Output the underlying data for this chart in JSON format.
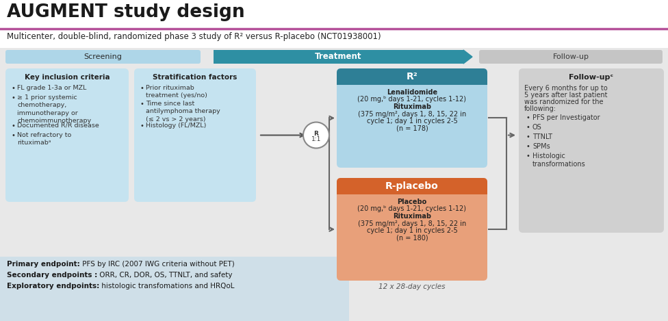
{
  "title": "AUGMENT study design",
  "subtitle": "Multicenter, double-blind, randomized phase 3 study of R² versus R-placebo (NCT01938001)",
  "title_line_color": "#b5519a",
  "bg_color": "#e8e8e8",
  "white": "#ffffff",
  "screening_header_color": "#aed6e8",
  "treatment_header_color": "#2e8fa3",
  "followup_header_color": "#c5c5c5",
  "screening_box_color": "#c5e3f0",
  "r2_header_color": "#2e7f96",
  "r2_box_color": "#aed6e8",
  "rplacebo_header_color": "#d4622a",
  "rplacebo_box_color": "#e8a07a",
  "followup_box_color": "#d0d0d0",
  "endpoint_box_color": "#cfdfe8",
  "key_inclusion_title": "Key inclusion criteria",
  "key_inclusion_bullets": [
    "FL grade 1-3a or MZL",
    "≥ 1 prior systemic\nchemotherapy,\nimmunotherapy or\nchemoimmunotherapy",
    "Documented R/R disease",
    "Not refractory to\nrituximabᵃ"
  ],
  "stratification_title": "Stratification factors",
  "stratification_bullets": [
    "Prior rituximab\ntreatment (yes/no)",
    "Time since last\nantilymphoma therapy\n(≤ 2 vs > 2 years)",
    "Histology (FL/MZL)"
  ],
  "r2_header": "R²",
  "r2_lines": [
    "Lenalidomide",
    "(20 mg,ᵇ days 1-21, cycles 1-12)",
    "Rituximab",
    "(375 mg/m², days 1, 8, 15, 22 in",
    "cycle 1; day 1 in cycles 2-5",
    "(n = 178)"
  ],
  "r2_bold": [
    true,
    false,
    true,
    false,
    false,
    false
  ],
  "rplacebo_header": "R-placebo",
  "rplacebo_lines": [
    "Placebo",
    "(20 mg,ᵇ days 1-21, cycles 1-12)",
    "Rituximab",
    "(375 mg/m², days 1, 8, 15, 22 in",
    "cycle 1; day 1 in cycles 2-5",
    "(n = 180)"
  ],
  "rplacebo_bold": [
    true,
    false,
    true,
    false,
    false,
    false
  ],
  "cycles_label": "12 x 28-day cycles",
  "followup_title": "Follow-upᶜ",
  "followup_content_lines": [
    "Every 6 months for up to",
    "5 years after last patient",
    "was randomized for the",
    "following:"
  ],
  "followup_bullets": [
    "PFS per Investigator",
    "OS",
    "TTNLT",
    "SPMs",
    "Histologic\ntransformations"
  ],
  "primary_bold": "Primary endpoint:",
  "primary_rest": " PFS by IRC (2007 IWG criteria without PET)",
  "secondary_bold": "Secondary endpoints :",
  "secondary_rest": " ORR, CR, DOR, OS, TTNLT, and safety",
  "exploratory_bold": "Exploratory endpoints:",
  "exploratory_rest": " histologic transfomations and HRQoL",
  "randomization_label": "R\n1:1",
  "screening_label": "Screening",
  "treatment_label": "Treatment",
  "followup_label": "Follow-up"
}
